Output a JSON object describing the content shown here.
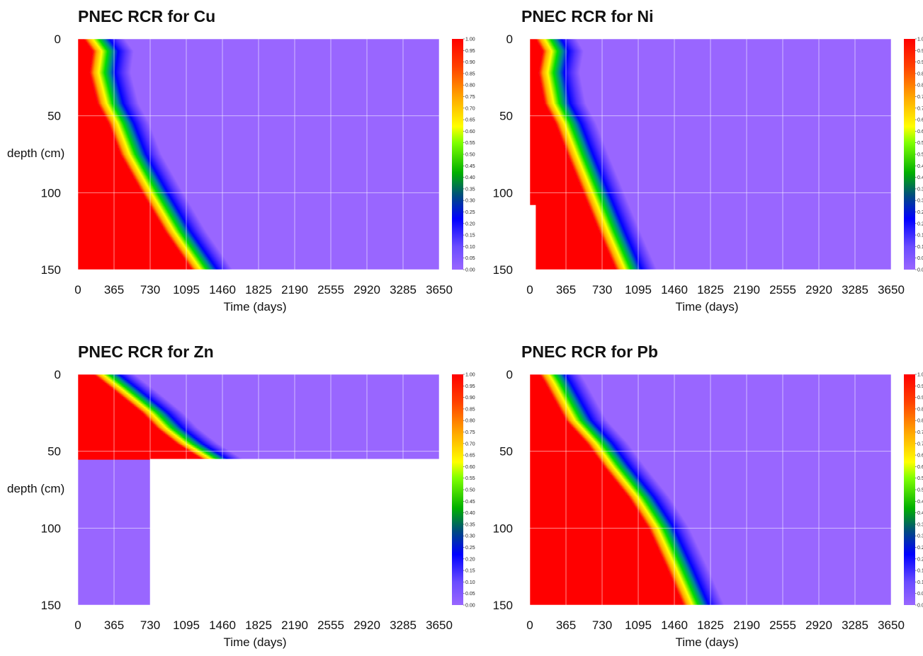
{
  "chart_data": [
    {
      "type": "heatmap",
      "title": "PNEC RCR for Cu",
      "xlabel": "Time (days)",
      "ylabel": "depth (cm)",
      "x_ticks": [
        "0",
        "365",
        "730",
        "1095",
        "1460",
        "1825",
        "2190",
        "2555",
        "2920",
        "3285",
        "3650"
      ],
      "y_ticks": [
        "0",
        "50",
        "100",
        "150"
      ],
      "xlim": [
        0,
        3650
      ],
      "ylim": [
        150,
        0
      ],
      "color_scale": {
        "min": 0.0,
        "max": 1.0,
        "labels": [
          "1.00",
          "0.95",
          "0.90",
          "0.85",
          "0.80",
          "0.75",
          "0.70",
          "0.65",
          "0.60",
          "0.55",
          "0.50",
          "0.45",
          "0.40",
          "0.35",
          "0.30",
          "0.25",
          "0.20",
          "0.15",
          "0.10",
          "0.05",
          "0.00"
        ]
      },
      "front": {
        "depth": [
          0,
          8,
          22,
          42,
          55,
          75,
          100,
          125,
          150
        ],
        "time_days": [
          60,
          150,
          120,
          200,
          310,
          430,
          650,
          880,
          1150
        ]
      },
      "missing_region": []
    },
    {
      "type": "heatmap",
      "title": "PNEC RCR for Ni",
      "xlabel": "Time (days)",
      "ylabel": "",
      "x_ticks": [
        "0",
        "365",
        "730",
        "1095",
        "1460",
        "1825",
        "2190",
        "2555",
        "2920",
        "3285",
        "3650"
      ],
      "y_ticks": [
        "0",
        "50",
        "100",
        "150"
      ],
      "xlim": [
        0,
        3650
      ],
      "ylim": [
        150,
        0
      ],
      "color_scale": {
        "min": 0.0,
        "max": 1.0,
        "labels": [
          "1.00",
          "0.95",
          "0.90",
          "0.85",
          "0.80",
          "0.75",
          "0.70",
          "0.65",
          "0.60",
          "0.55",
          "0.50",
          "0.45",
          "0.40",
          "0.35",
          "0.30",
          "0.25",
          "0.20",
          "0.15",
          "0.10",
          "0.05",
          "0.00"
        ]
      },
      "front": {
        "depth": [
          0,
          8,
          22,
          42,
          55,
          75,
          100,
          125,
          150
        ],
        "time_days": [
          60,
          130,
          90,
          150,
          260,
          380,
          540,
          700,
          870
        ]
      },
      "missing_region": [
        {
          "depth": [
            108,
            150
          ],
          "time_days": [
            0,
            60
          ]
        }
      ]
    },
    {
      "type": "heatmap",
      "title": "PNEC RCR for Zn",
      "xlabel": "Time (days)",
      "ylabel": "depth (cm)",
      "x_ticks": [
        "0",
        "365",
        "730",
        "1095",
        "1460",
        "1825",
        "2190",
        "2555",
        "2920",
        "3285",
        "3650"
      ],
      "y_ticks": [
        "0",
        "50",
        "100",
        "150"
      ],
      "xlim": [
        0,
        3650
      ],
      "ylim": [
        150,
        0
      ],
      "color_scale": {
        "min": 0.0,
        "max": 1.0,
        "labels": [
          "1.00",
          "0.95",
          "0.90",
          "0.85",
          "0.80",
          "0.75",
          "0.70",
          "0.65",
          "0.60",
          "0.55",
          "0.50",
          "0.45",
          "0.40",
          "0.35",
          "0.30",
          "0.25",
          "0.20",
          "0.15",
          "0.10",
          "0.05",
          "0.00"
        ]
      },
      "front": {
        "depth": [
          0,
          10,
          25,
          35,
          45,
          55
        ],
        "time_days": [
          160,
          360,
          650,
          800,
          1000,
          1250
        ]
      },
      "missing_region": [
        {
          "depth": [
            55,
            150
          ],
          "time_days": [
            730,
            3650
          ]
        }
      ]
    },
    {
      "type": "heatmap",
      "title": "PNEC RCR for Pb",
      "xlabel": "Time (days)",
      "ylabel": "",
      "x_ticks": [
        "0",
        "365",
        "730",
        "1095",
        "1460",
        "1825",
        "2190",
        "2555",
        "2920",
        "3285",
        "3650"
      ],
      "y_ticks": [
        "0",
        "50",
        "100",
        "150"
      ],
      "xlim": [
        0,
        3650
      ],
      "ylim": [
        150,
        0
      ],
      "color_scale": {
        "min": 0.0,
        "max": 1.0,
        "labels": [
          "1.00",
          "0.95",
          "0.90",
          "0.85",
          "0.80",
          "0.75",
          "0.70",
          "0.65",
          "0.60",
          "0.55",
          "0.50",
          "0.45",
          "0.40",
          "0.35",
          "0.30",
          "0.25",
          "0.20",
          "0.15",
          "0.10",
          "0.05",
          "0.00"
        ]
      },
      "front": {
        "depth": [
          0,
          5,
          30,
          45,
          60,
          80,
          100,
          125,
          150
        ],
        "time_days": [
          100,
          150,
          365,
          580,
          750,
          1000,
          1200,
          1380,
          1550
        ]
      },
      "missing_region": []
    }
  ],
  "colors": {
    "background_low": "#9966ff",
    "high": "#ff0000",
    "mid_green": "#00dd00",
    "mid_yellow": "#ffff00",
    "blue": "#0000ff"
  }
}
